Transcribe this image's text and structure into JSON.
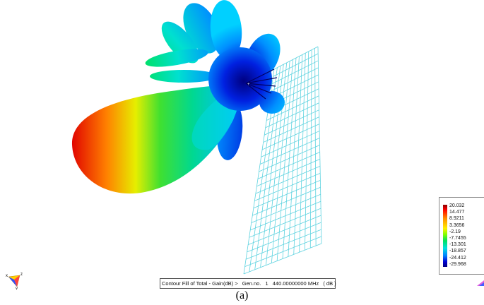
{
  "caption": {
    "prefix": "Contour Fill of Total - Gain(dB) >",
    "gen_label": "Gen.no.",
    "gen_value": "1",
    "frequency": "440.00000000 MHz",
    "unit": "( dB )"
  },
  "figure_label": "(a)",
  "legend": {
    "values": [
      "20.032",
      "14.477",
      "8.9211",
      "3.3656",
      "-2.19",
      "-7.7455",
      "-13.301",
      "-18.857",
      "-24.412",
      "-29.968"
    ]
  },
  "axes": {
    "x": "x",
    "y": "y",
    "z": "z"
  },
  "icons": {
    "triad": "axis-triad-icon",
    "corner": "corner-triangle-icon"
  }
}
